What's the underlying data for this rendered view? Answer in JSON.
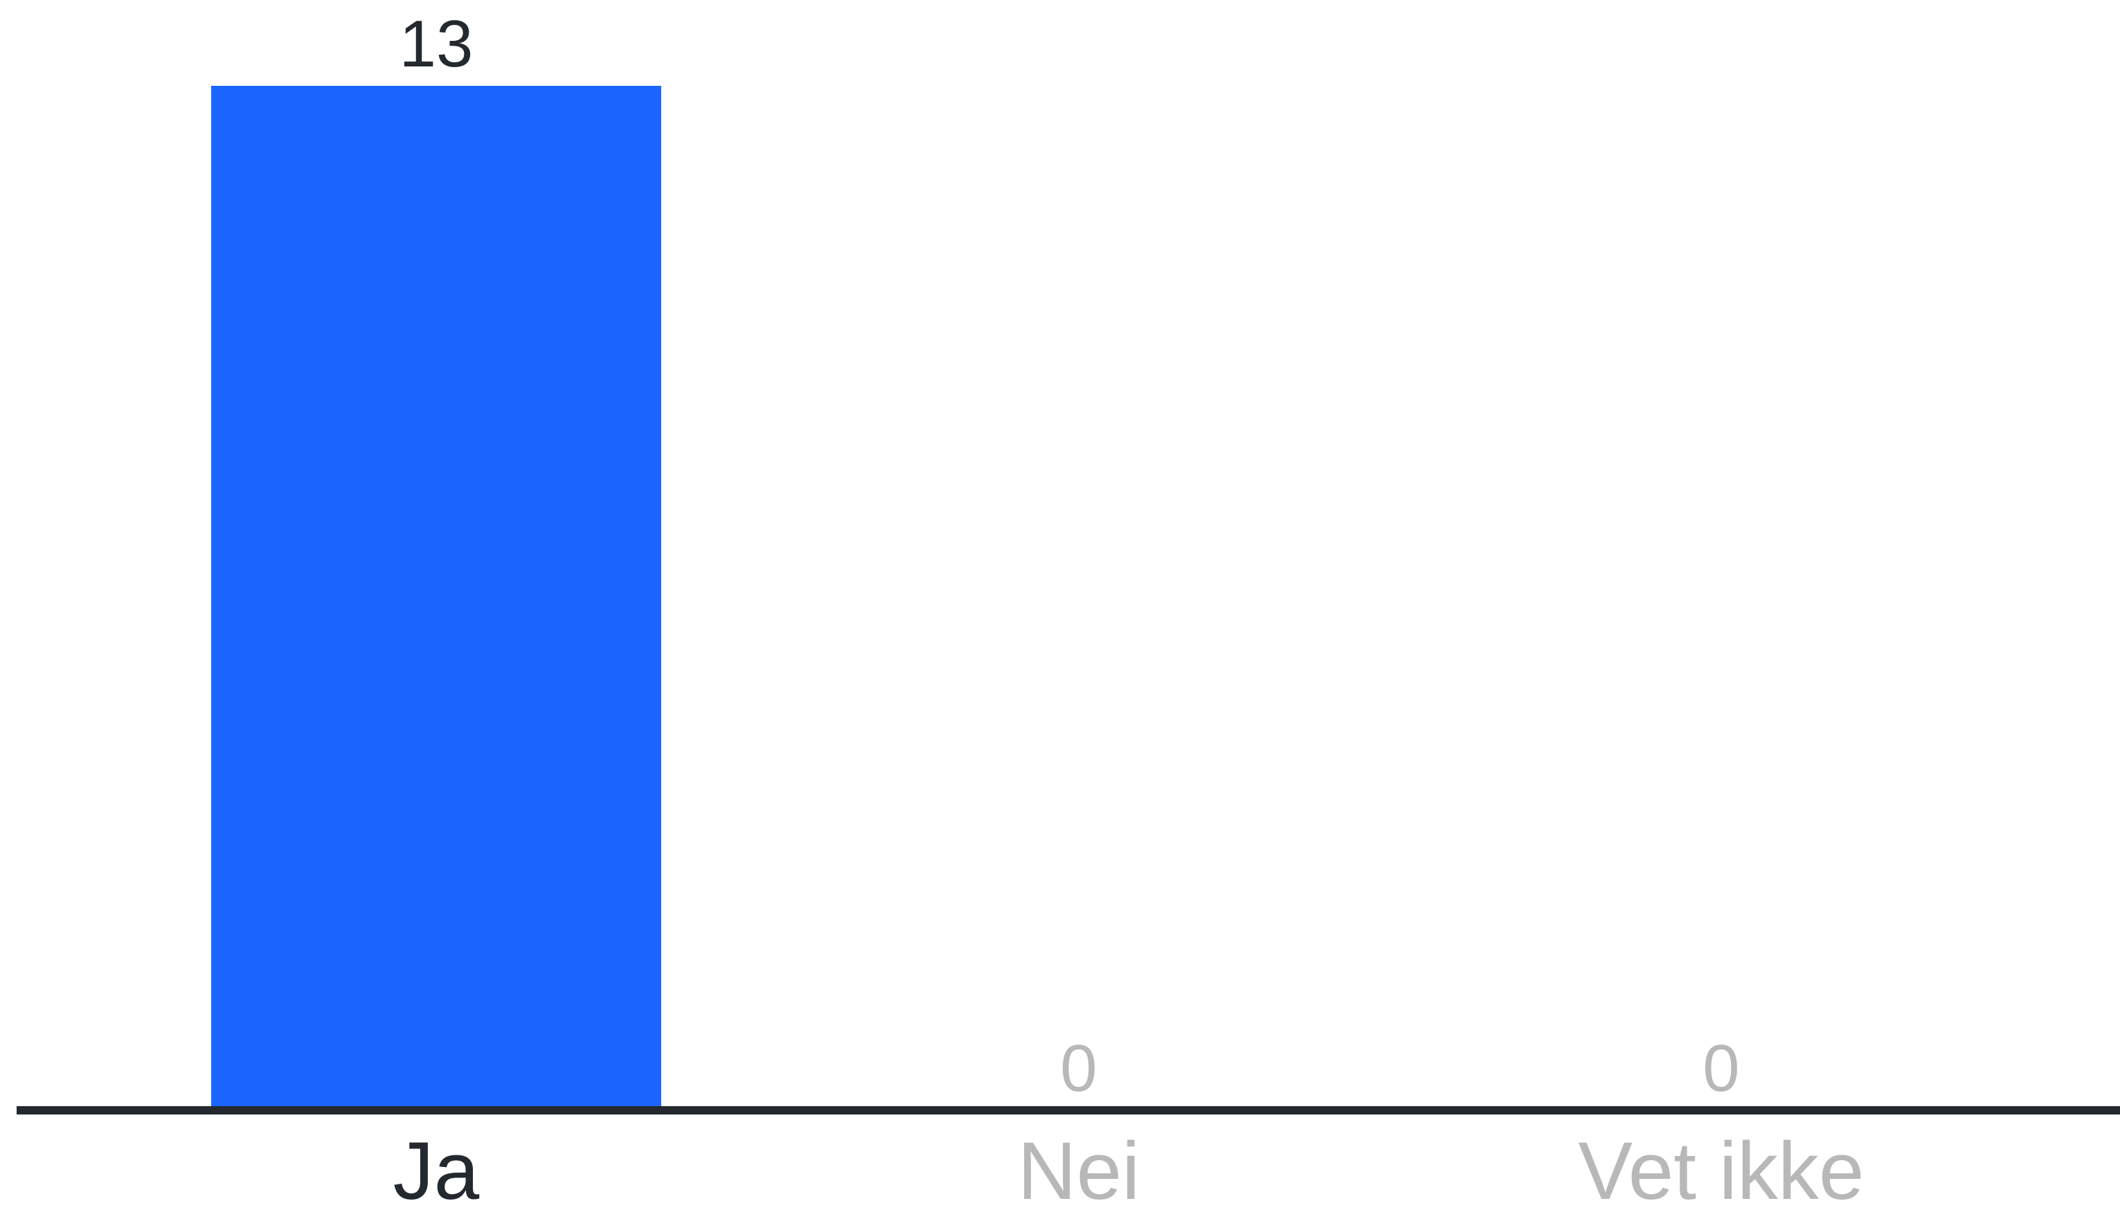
{
  "chart_data": {
    "type": "bar",
    "categories": [
      "Ja",
      "Nei",
      "Vet ikke"
    ],
    "values": [
      13,
      0,
      0
    ],
    "ylim": [
      0,
      13
    ],
    "grid": false,
    "legend": "none",
    "colors": {
      "bar": "#1a66ff",
      "axis": "#24292f",
      "label_active": "#24292f",
      "label_inactive": "#b8b8b8"
    }
  }
}
